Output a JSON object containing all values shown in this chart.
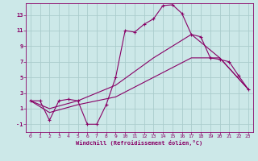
{
  "xlabel": "Windchill (Refroidissement éolien,°C)",
  "bg_color": "#cce8e8",
  "line_color": "#880066",
  "grid_color": "#aacccc",
  "xlim": [
    -0.5,
    23.5
  ],
  "ylim": [
    -2.0,
    14.5
  ],
  "xticks": [
    0,
    1,
    2,
    3,
    4,
    5,
    6,
    7,
    8,
    9,
    10,
    11,
    12,
    13,
    14,
    15,
    16,
    17,
    18,
    19,
    20,
    21,
    22,
    23
  ],
  "yticks": [
    -1,
    1,
    3,
    5,
    7,
    9,
    11,
    13
  ],
  "line1_x": [
    0,
    1,
    2,
    3,
    4,
    5,
    6,
    7,
    8,
    9,
    10,
    11,
    12,
    13,
    14,
    15,
    16,
    17,
    18,
    19,
    20,
    21,
    22,
    23
  ],
  "line1_y": [
    2.0,
    2.0,
    -0.5,
    2.0,
    2.2,
    2.0,
    -1.0,
    -1.0,
    1.5,
    5.0,
    11.0,
    10.8,
    11.8,
    12.5,
    14.2,
    14.3,
    13.2,
    10.5,
    10.2,
    7.5,
    7.3,
    7.0,
    5.2,
    3.5
  ],
  "line2_x": [
    0,
    2,
    5,
    9,
    13,
    17,
    20,
    23
  ],
  "line2_y": [
    2.0,
    1.0,
    2.0,
    4.0,
    7.5,
    10.5,
    7.5,
    3.5
  ],
  "line3_x": [
    0,
    2,
    5,
    9,
    13,
    17,
    20,
    23
  ],
  "line3_y": [
    2.0,
    0.5,
    1.5,
    2.5,
    5.0,
    7.5,
    7.5,
    3.5
  ]
}
